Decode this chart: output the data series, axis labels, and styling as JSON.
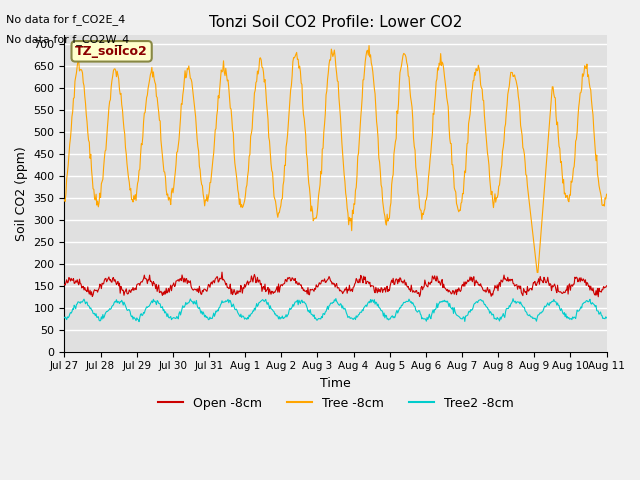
{
  "title": "Tonzi Soil CO2 Profile: Lower CO2",
  "ylabel": "Soil CO2 (ppm)",
  "xlabel": "Time",
  "annotation_lines": [
    "No data for f_CO2E_4",
    "No data for f_CO2W_4"
  ],
  "box_label": "TZ_soilco2",
  "ylim": [
    0,
    720
  ],
  "yticks": [
    0,
    50,
    100,
    150,
    200,
    250,
    300,
    350,
    400,
    450,
    500,
    550,
    600,
    650,
    700
  ],
  "xtick_labels": [
    "Jul 27",
    "Jul 28",
    "Jul 29",
    "Jul 30",
    "Jul 31",
    "Aug 1",
    "Aug 2",
    "Aug 3",
    "Aug 4",
    "Aug 5",
    "Aug 6",
    "Aug 7",
    "Aug 8",
    "Aug 9",
    "Aug 10",
    "Aug 11"
  ],
  "colors": {
    "open": "#cc0000",
    "tree": "#ffa500",
    "tree2": "#00cccc",
    "bg": "#e0e0e0",
    "grid": "#ffffff",
    "box_bg": "#ffffcc",
    "box_edge": "#888844"
  },
  "legend_labels": [
    "Open -8cm",
    "Tree -8cm",
    "Tree2 -8cm"
  ],
  "n_days": 15,
  "open_base": 150,
  "open_amp": 15,
  "tree_base": 490,
  "tree_amp": 170,
  "tree2_base": 95,
  "tree2_amp": 20
}
